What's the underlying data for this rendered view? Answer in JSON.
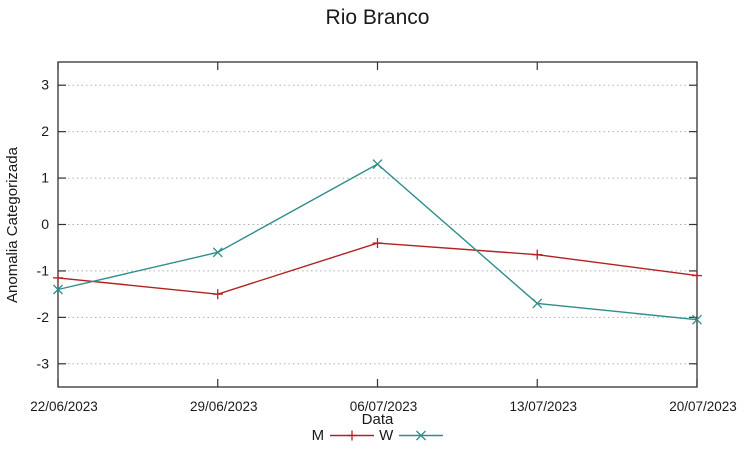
{
  "title": "Rio Branco",
  "chart_data": {
    "type": "line",
    "title": "Rio Branco",
    "xlabel": "Data",
    "ylabel": "Anomalia Categorizada",
    "categories": [
      "22/06/2023",
      "29/06/2023",
      "06/07/2023",
      "13/07/2023",
      "20/07/2023"
    ],
    "series": [
      {
        "name": "M",
        "color": "#b22222",
        "marker": "plus",
        "values": [
          -1.15,
          -1.5,
          -0.4,
          -0.65,
          -1.1
        ]
      },
      {
        "name": "W",
        "color": "#2f8e8c",
        "marker": "cross",
        "values": [
          -1.4,
          -0.6,
          1.3,
          -1.7,
          -2.05
        ]
      }
    ],
    "yticks": [
      -3,
      -2,
      -1,
      0,
      1,
      2,
      3
    ],
    "ylim": [
      -3.5,
      3.5
    ],
    "grid": true,
    "grid_style": "dotted",
    "legend_position": "bottom-center"
  },
  "colors": {
    "axis": "#333333",
    "grid": "#b0b0b0",
    "tick_text": "#1a1a1a",
    "background": "#ffffff"
  }
}
